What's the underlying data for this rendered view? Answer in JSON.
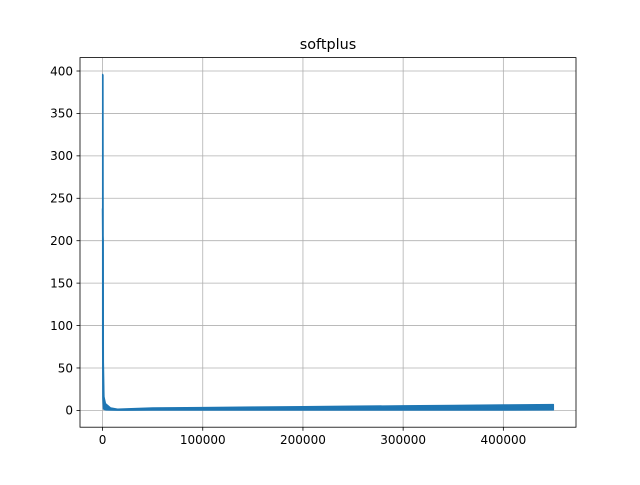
{
  "chart_data": {
    "type": "line",
    "title": "softplus",
    "xlabel": "",
    "ylabel": "",
    "xlim": [
      -22500,
      472500
    ],
    "ylim": [
      -19.8,
      415.8
    ],
    "grid": true,
    "x_ticks": [
      0,
      100000,
      200000,
      300000,
      400000
    ],
    "x_tick_labels": [
      "0",
      "100000",
      "200000",
      "300000",
      "400000"
    ],
    "y_ticks": [
      0,
      50,
      100,
      150,
      200,
      250,
      300,
      350,
      400
    ],
    "y_tick_labels": [
      "0",
      "50",
      "100",
      "150",
      "200",
      "250",
      "300",
      "350",
      "400"
    ],
    "series": [
      {
        "color": "#1f77b4",
        "style": "noisy band",
        "x": [
          0,
          200,
          500,
          800,
          1500,
          3000,
          8000,
          15000,
          25000,
          50000,
          100000,
          150000,
          200000,
          250000,
          300000,
          350000,
          400000,
          450000
        ],
        "y_max": [
          396,
          396,
          395,
          60,
          16,
          8,
          3,
          1.5,
          2,
          3,
          3.5,
          4,
          4.5,
          5,
          5.5,
          6,
          6.5,
          7
        ],
        "y_min": [
          80,
          15,
          8,
          2,
          1,
          0.5,
          0.3,
          0.2,
          0.2,
          0.3,
          0.3,
          0.3,
          0.3,
          0.3,
          0.3,
          0.3,
          0.3,
          0.4
        ]
      }
    ]
  }
}
